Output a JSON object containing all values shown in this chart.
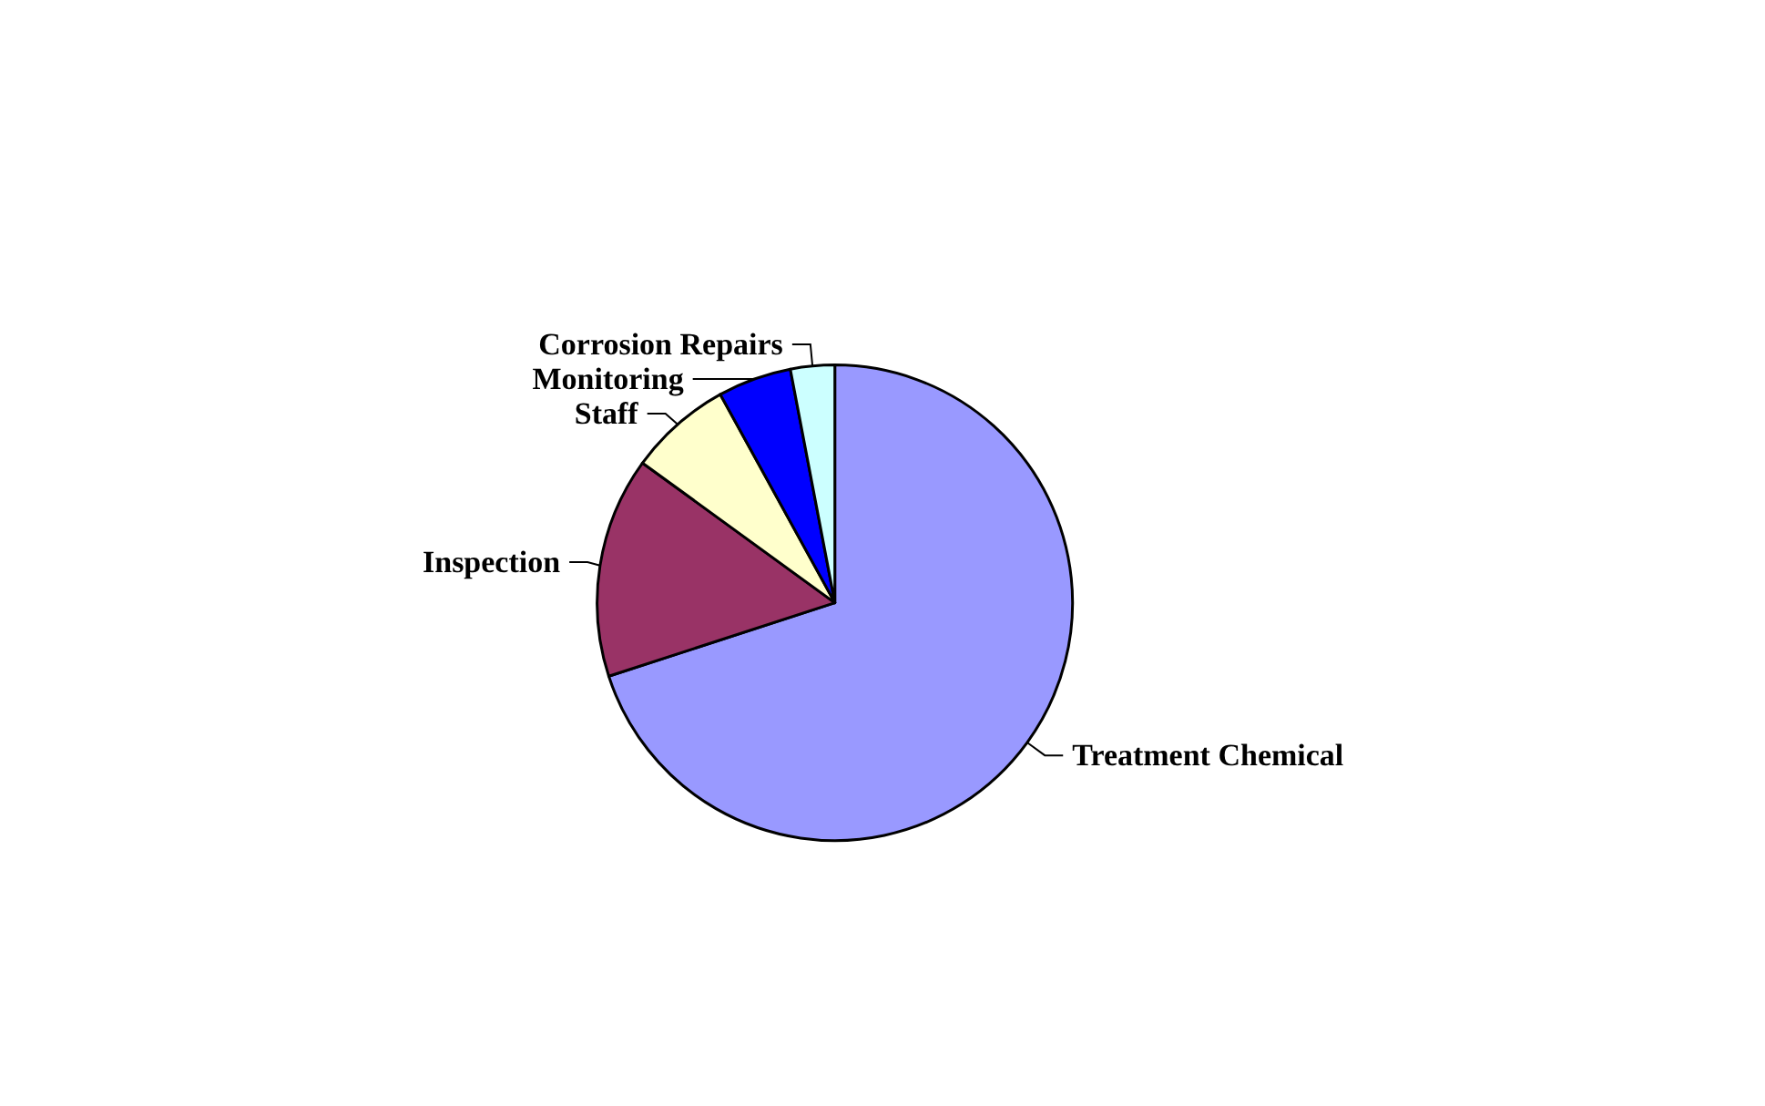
{
  "chart_data": {
    "type": "pie",
    "categories": [
      "Treatment Chemical",
      "Inspection",
      "Staff",
      "Monitoring",
      "Corrosion Repairs"
    ],
    "values": [
      70,
      15,
      7,
      5,
      3
    ],
    "colors": [
      "#9999ff",
      "#993366",
      "#ffffcc",
      "#0000ff",
      "#ccffff"
    ],
    "legend": false
  }
}
